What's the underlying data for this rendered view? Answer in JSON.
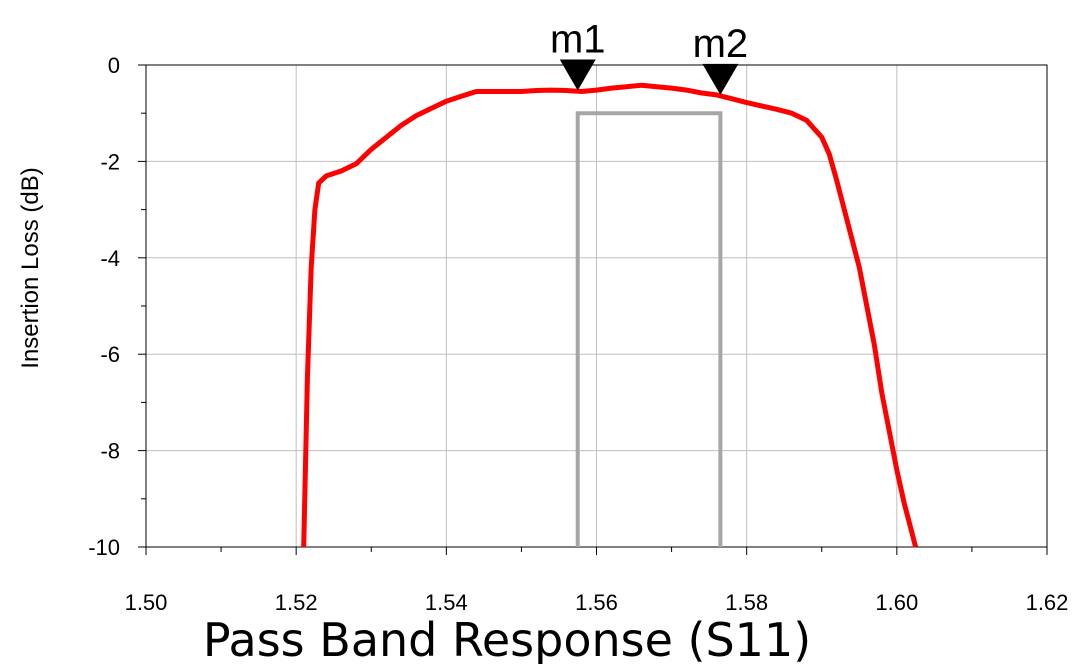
{
  "chart_data": {
    "type": "line",
    "title": "Pass Band Response (S11)",
    "xlabel": "",
    "ylabel": "Insertion Loss (dB)",
    "xlim": [
      1.5,
      1.62
    ],
    "ylim": [
      -10,
      0
    ],
    "x_ticks": [
      1.5,
      1.52,
      1.54,
      1.56,
      1.58,
      1.6,
      1.62
    ],
    "x_tick_labels": [
      "1.50",
      "1.52",
      "1.54",
      "1.56",
      "1.58",
      "1.60",
      "1.62"
    ],
    "y_ticks": [
      0,
      -2,
      -4,
      -6,
      -8,
      -10
    ],
    "y_tick_labels": [
      "0",
      "-2",
      "-4",
      "-6",
      "-8",
      "-10"
    ],
    "grid": true,
    "series": [
      {
        "color": "#ff0000",
        "x": [
          1.521,
          1.5215,
          1.522,
          1.5225,
          1.523,
          1.524,
          1.526,
          1.528,
          1.53,
          1.532,
          1.534,
          1.536,
          1.538,
          1.54,
          1.542,
          1.544,
          1.546,
          1.548,
          1.55,
          1.552,
          1.554,
          1.556,
          1.558,
          1.56,
          1.562,
          1.564,
          1.566,
          1.568,
          1.57,
          1.572,
          1.574,
          1.576,
          1.578,
          1.58,
          1.582,
          1.584,
          1.586,
          1.588,
          1.59,
          1.591,
          1.592,
          1.593,
          1.594,
          1.595,
          1.596,
          1.597,
          1.598,
          1.599,
          1.6,
          1.601,
          1.602,
          1.6025
        ],
        "y": [
          -10,
          -6.5,
          -4.2,
          -3.0,
          -2.45,
          -2.3,
          -2.2,
          -2.05,
          -1.75,
          -1.5,
          -1.25,
          -1.05,
          -0.9,
          -0.75,
          -0.65,
          -0.55,
          -0.55,
          -0.55,
          -0.55,
          -0.53,
          -0.52,
          -0.53,
          -0.55,
          -0.52,
          -0.48,
          -0.45,
          -0.42,
          -0.45,
          -0.48,
          -0.52,
          -0.58,
          -0.62,
          -0.7,
          -0.78,
          -0.85,
          -0.92,
          -1.0,
          -1.15,
          -1.5,
          -1.85,
          -2.4,
          -3.0,
          -3.6,
          -4.2,
          -5.0,
          -5.8,
          -6.8,
          -7.6,
          -8.4,
          -9.1,
          -9.7,
          -10
        ]
      }
    ],
    "mask": {
      "color": "#a6a6a6",
      "x_start": 1.5575,
      "x_end": 1.5765,
      "y_top": -1,
      "y_bottom": -10
    },
    "markers": [
      {
        "label": "m1",
        "x": 1.5575,
        "y": -0.55
      },
      {
        "label": "m2",
        "x": 1.5765,
        "y": -0.64
      }
    ]
  }
}
